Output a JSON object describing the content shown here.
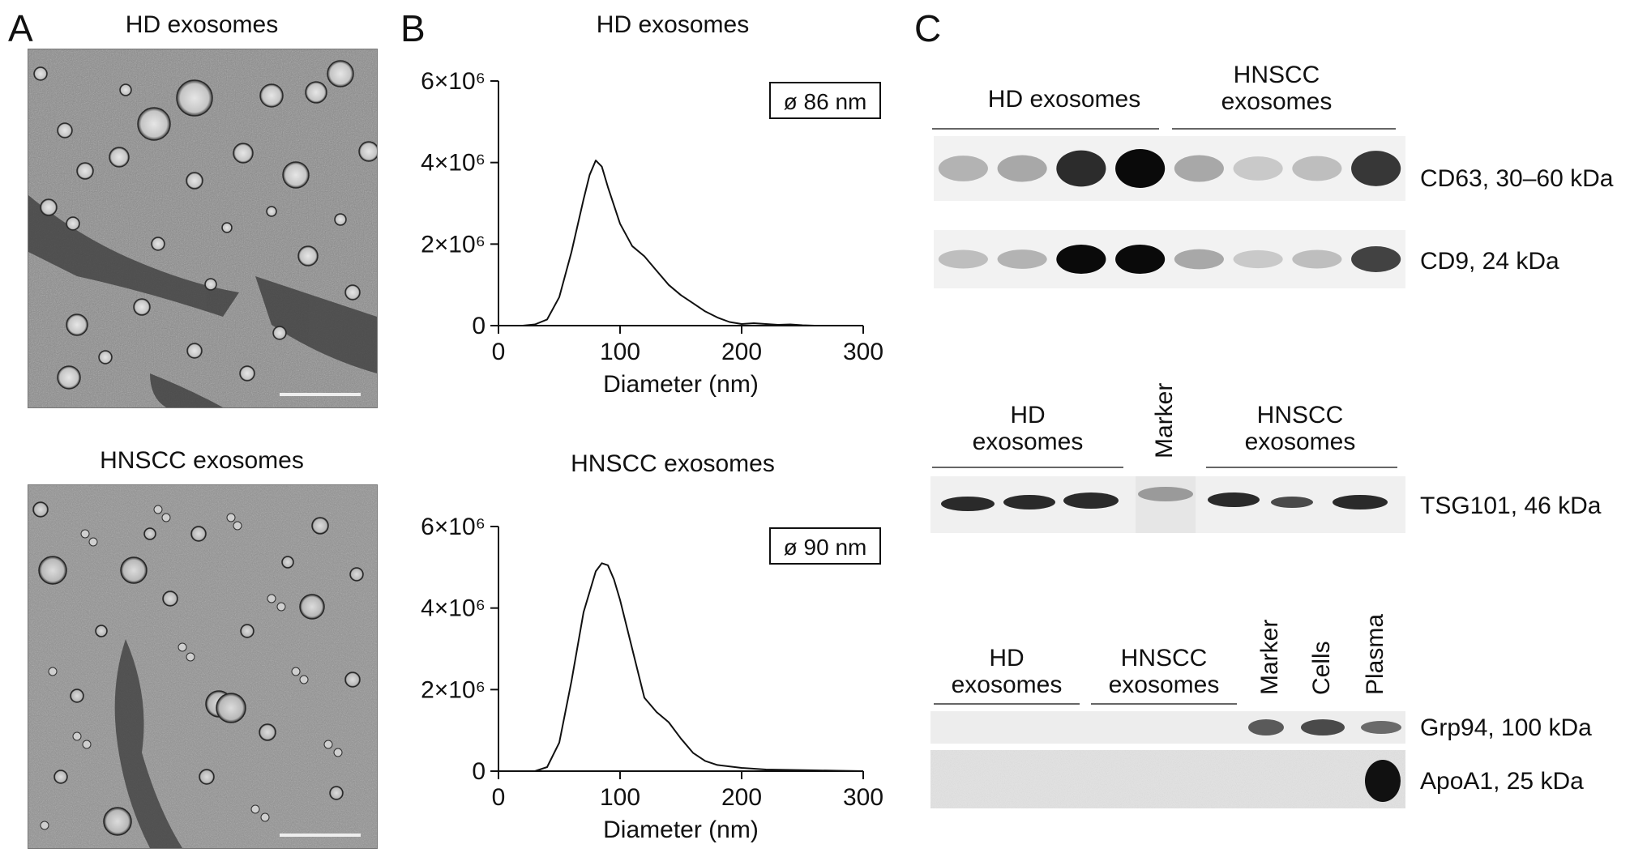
{
  "panel_a": {
    "letter": "A",
    "top_title": "HD exosomes",
    "bottom_title": "HNSCC exosomes"
  },
  "panel_b": {
    "letter": "B",
    "top_title": "HD exosomes",
    "bottom_title": "HNSCC exosomes"
  },
  "panel_c": {
    "letter": "C",
    "blot1": {
      "groups": [
        "HD exosomes",
        "HNSCC\nexosomes"
      ],
      "rows": [
        "CD63, 30–60 kDa",
        "CD9, 24 kDa"
      ],
      "cd63_intensity": [
        0.25,
        0.3,
        0.85,
        1.0,
        0.3,
        0.15,
        0.2,
        0.8
      ],
      "cd9_intensity": [
        0.2,
        0.25,
        1.0,
        1.0,
        0.3,
        0.15,
        0.2,
        0.75
      ]
    },
    "blot2": {
      "groups": [
        "HD\nexosomes",
        "HNSCC\nexosomes"
      ],
      "marker_label": "Marker",
      "row": "TSG101, 46 kDa"
    },
    "blot3": {
      "groups": [
        "HD\nexosomes",
        "HNSCC\nexosomes"
      ],
      "lane_labels": [
        "Marker",
        "Cells",
        "Plasma"
      ],
      "rows": [
        "Grp94, 100 kDa",
        "ApoA1, 25 kDa"
      ]
    }
  },
  "chart_data": [
    {
      "type": "line",
      "title": "HD exosomes",
      "xlabel": "Diameter (nm)",
      "ylabel": "",
      "xlim": [
        0,
        300
      ],
      "ylim": [
        0,
        6000000
      ],
      "xticks": [
        "0",
        "100",
        "200",
        "300"
      ],
      "yticks": [
        "0",
        "2×10⁶",
        "4×10⁶",
        "6×10⁶"
      ],
      "annotation": "ø 86 nm",
      "x": [
        0,
        20,
        30,
        40,
        50,
        60,
        70,
        75,
        80,
        85,
        90,
        100,
        110,
        120,
        130,
        140,
        150,
        160,
        170,
        180,
        190,
        200,
        210,
        220,
        230,
        240,
        250,
        260
      ],
      "y": [
        0,
        0,
        30000,
        150000,
        700000,
        1800000,
        3100000,
        3700000,
        4050000,
        3900000,
        3400000,
        2500000,
        1950000,
        1700000,
        1350000,
        1000000,
        750000,
        550000,
        350000,
        200000,
        90000,
        40000,
        60000,
        40000,
        20000,
        30000,
        10000,
        0
      ]
    },
    {
      "type": "line",
      "title": "HNSCC exosomes",
      "xlabel": "Diameter (nm)",
      "ylabel": "",
      "xlim": [
        0,
        300
      ],
      "ylim": [
        0,
        6000000
      ],
      "xticks": [
        "0",
        "100",
        "200",
        "300"
      ],
      "yticks": [
        "0",
        "2×10⁶",
        "4×10⁶",
        "6×10⁶"
      ],
      "annotation": "ø 90 nm",
      "x": [
        0,
        30,
        40,
        50,
        60,
        70,
        80,
        85,
        90,
        95,
        100,
        110,
        120,
        130,
        140,
        150,
        160,
        170,
        180,
        200,
        220,
        240,
        260,
        280,
        300
      ],
      "y": [
        0,
        0,
        100000,
        700000,
        2200000,
        3900000,
        4900000,
        5100000,
        5050000,
        4700000,
        4200000,
        3000000,
        1800000,
        1450000,
        1200000,
        800000,
        450000,
        250000,
        150000,
        80000,
        40000,
        30000,
        20000,
        10000,
        0
      ]
    }
  ]
}
